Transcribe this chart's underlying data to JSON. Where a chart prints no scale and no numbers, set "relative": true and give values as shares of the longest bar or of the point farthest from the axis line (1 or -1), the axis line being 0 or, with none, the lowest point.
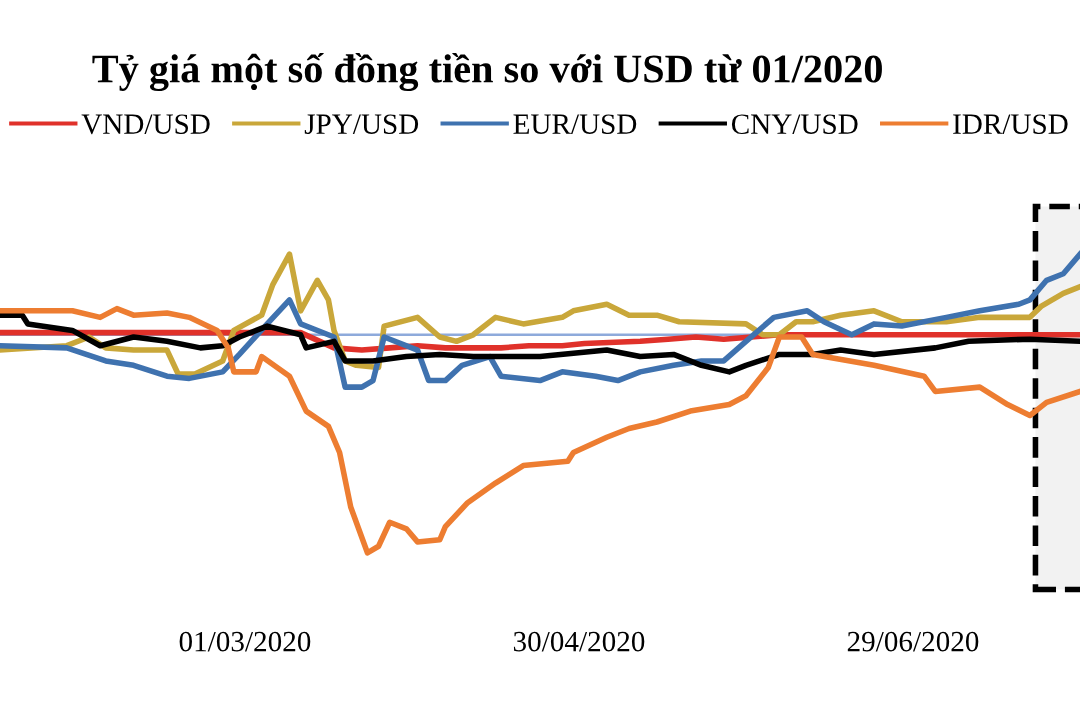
{
  "chart_data": {
    "type": "line",
    "title": "Tỷ giá một số đồng tiền so với USD từ 01/2020",
    "relative": true,
    "legend": "top",
    "grid": false,
    "marker": "none",
    "line_style": "solid",
    "xlim": [
      "2020-01-17",
      "2020-07-29"
    ],
    "xticks": [
      {
        "value": "2020-03-01",
        "label": "01/03/2020"
      },
      {
        "value": "2020-04-30",
        "label": "30/04/2020"
      },
      {
        "value": "2020-06-29",
        "label": "29/06/2020"
      }
    ],
    "ref_lines": [
      {
        "axis": "y",
        "value": 0,
        "color": "#8eaadb",
        "label": null
      }
    ],
    "bands": [
      {
        "axis": "x",
        "from": "2020-07-21",
        "to": "2020-07-29",
        "color": "#000000",
        "label": null
      }
    ],
    "series": [
      {
        "name": "VND/USD",
        "color": "#e0312a",
        "x": [
          "2020-01-17",
          "2020-03-11",
          "2020-03-17",
          "2020-03-22",
          "2020-03-27",
          "2020-04-01",
          "2020-04-06",
          "2020-04-16",
          "2020-04-21",
          "2020-04-27",
          "2020-05-01",
          "2020-05-11",
          "2020-05-16",
          "2020-05-21",
          "2020-05-26",
          "2020-05-31",
          "2020-06-05",
          "2020-07-29"
        ],
        "values": [
          0.01,
          0.01,
          -0.06,
          -0.07,
          -0.06,
          -0.05,
          -0.06,
          -0.06,
          -0.05,
          -0.05,
          -0.04,
          -0.03,
          -0.02,
          -0.01,
          -0.02,
          -0.01,
          0,
          0
        ]
      },
      {
        "name": "JPY/USD",
        "color": "#c9a73a",
        "x": [
          "2020-01-17",
          "2020-01-29",
          "2020-02-02",
          "2020-02-05",
          "2020-02-10",
          "2020-02-16",
          "2020-02-18",
          "2020-02-21",
          "2020-02-26",
          "2020-02-28",
          "2020-03-04",
          "2020-03-06",
          "2020-03-09",
          "2020-03-11",
          "2020-03-14",
          "2020-03-16",
          "2020-03-17",
          "2020-03-19",
          "2020-03-21",
          "2020-03-25",
          "2020-03-26",
          "2020-04-01",
          "2020-04-05",
          "2020-04-08",
          "2020-04-11",
          "2020-04-15",
          "2020-04-20",
          "2020-04-27",
          "2020-04-29",
          "2020-05-05",
          "2020-05-09",
          "2020-05-14",
          "2020-05-18",
          "2020-05-30",
          "2020-06-02",
          "2020-06-05",
          "2020-06-08",
          "2020-06-11",
          "2020-06-16",
          "2020-06-22",
          "2020-06-27",
          "2020-07-05",
          "2020-07-11",
          "2020-07-20",
          "2020-07-22",
          "2020-07-26",
          "2020-07-29"
        ],
        "values": [
          -0.07,
          -0.05,
          -0.01,
          -0.06,
          -0.07,
          -0.07,
          -0.18,
          -0.18,
          -0.12,
          0.02,
          0.09,
          0.23,
          0.37,
          0.11,
          0.25,
          0.16,
          0.02,
          -0.12,
          -0.14,
          -0.15,
          0.04,
          0.08,
          -0.01,
          -0.03,
          0,
          0.08,
          0.05,
          0.08,
          0.11,
          0.14,
          0.09,
          0.09,
          0.06,
          0.05,
          0,
          0,
          0.06,
          0.06,
          0.09,
          0.11,
          0.06,
          0.06,
          0.08,
          0.08,
          0.13,
          0.19,
          0.22
        ]
      },
      {
        "name": "EUR/USD",
        "color": "#3f72af",
        "x": [
          "2020-01-17",
          "2020-01-29",
          "2020-02-05",
          "2020-02-10",
          "2020-02-16",
          "2020-02-20",
          "2020-02-26",
          "2020-02-29",
          "2020-03-05",
          "2020-03-09",
          "2020-03-11",
          "2020-03-17",
          "2020-03-19",
          "2020-03-22",
          "2020-03-24",
          "2020-03-26",
          "2020-04-01",
          "2020-04-03",
          "2020-04-06",
          "2020-04-09",
          "2020-04-14",
          "2020-04-16",
          "2020-04-23",
          "2020-04-27",
          "2020-05-03",
          "2020-05-07",
          "2020-05-11",
          "2020-05-17",
          "2020-05-22",
          "2020-05-26",
          "2020-05-30",
          "2020-06-04",
          "2020-06-10",
          "2020-06-13",
          "2020-06-18",
          "2020-06-22",
          "2020-06-27",
          "2020-07-05",
          "2020-07-11",
          "2020-07-18",
          "2020-07-20",
          "2020-07-23",
          "2020-07-26",
          "2020-07-29"
        ],
        "values": [
          -0.05,
          -0.06,
          -0.12,
          -0.14,
          -0.19,
          -0.2,
          -0.17,
          -0.09,
          0.05,
          0.16,
          0.05,
          -0.01,
          -0.24,
          -0.24,
          -0.21,
          -0.01,
          -0.07,
          -0.21,
          -0.21,
          -0.14,
          -0.1,
          -0.19,
          -0.21,
          -0.17,
          -0.19,
          -0.21,
          -0.17,
          -0.14,
          -0.12,
          -0.12,
          -0.03,
          0.08,
          0.11,
          0.06,
          0,
          0.05,
          0.04,
          0.08,
          0.11,
          0.14,
          0.16,
          0.25,
          0.28,
          0.37
        ]
      },
      {
        "name": "CNY/USD",
        "color": "#000000",
        "x": [
          "2020-01-17",
          "2020-01-21",
          "2020-01-22",
          "2020-01-30",
          "2020-02-04",
          "2020-02-10",
          "2020-02-16",
          "2020-02-22",
          "2020-02-26",
          "2020-02-29",
          "2020-03-05",
          "2020-03-11",
          "2020-03-12",
          "2020-03-17",
          "2020-03-19",
          "2020-03-24",
          "2020-03-30",
          "2020-04-05",
          "2020-04-11",
          "2020-04-23",
          "2020-05-05",
          "2020-05-11",
          "2020-05-17",
          "2020-05-22",
          "2020-05-27",
          "2020-05-30",
          "2020-06-05",
          "2020-06-11",
          "2020-06-16",
          "2020-06-22",
          "2020-07-03",
          "2020-07-09",
          "2020-07-20",
          "2020-07-29"
        ],
        "values": [
          0.09,
          0.09,
          0.05,
          0.02,
          -0.05,
          -0.01,
          -0.03,
          -0.06,
          -0.05,
          -0.01,
          0.04,
          0,
          -0.06,
          -0.03,
          -0.12,
          -0.12,
          -0.1,
          -0.09,
          -0.1,
          -0.1,
          -0.07,
          -0.1,
          -0.09,
          -0.14,
          -0.17,
          -0.14,
          -0.09,
          -0.09,
          -0.07,
          -0.09,
          -0.06,
          -0.03,
          -0.02,
          -0.03
        ]
      },
      {
        "name": "IDR/USD",
        "color": "#ed7d31",
        "x": [
          "2020-01-17",
          "2020-01-30",
          "2020-02-04",
          "2020-02-07",
          "2020-02-10",
          "2020-02-16",
          "2020-02-20",
          "2020-02-25",
          "2020-02-27",
          "2020-02-28",
          "2020-03-03",
          "2020-03-04",
          "2020-03-09",
          "2020-03-12",
          "2020-03-16",
          "2020-03-18",
          "2020-03-20",
          "2020-03-23",
          "2020-03-25",
          "2020-03-27",
          "2020-03-30",
          "2020-04-01",
          "2020-04-05",
          "2020-04-06",
          "2020-04-10",
          "2020-04-15",
          "2020-04-20",
          "2020-04-28",
          "2020-04-29",
          "2020-05-05",
          "2020-05-09",
          "2020-05-14",
          "2020-05-20",
          "2020-05-27",
          "2020-05-30",
          "2020-06-03",
          "2020-06-05",
          "2020-06-09",
          "2020-06-11",
          "2020-06-22",
          "2020-07-01",
          "2020-07-03",
          "2020-07-11",
          "2020-07-16",
          "2020-07-20",
          "2020-07-23",
          "2020-07-29"
        ],
        "values": [
          0.11,
          0.11,
          0.08,
          0.12,
          0.09,
          0.1,
          0.08,
          0.02,
          -0.06,
          -0.17,
          -0.17,
          -0.1,
          -0.19,
          -0.35,
          -0.42,
          -0.54,
          -0.79,
          -1,
          -0.97,
          -0.86,
          -0.89,
          -0.95,
          -0.94,
          -0.88,
          -0.77,
          -0.68,
          -0.6,
          -0.58,
          -0.54,
          -0.47,
          -0.43,
          -0.4,
          -0.35,
          -0.32,
          -0.28,
          -0.15,
          -0.01,
          -0.01,
          -0.09,
          -0.14,
          -0.19,
          -0.26,
          -0.24,
          -0.32,
          -0.37,
          -0.31,
          -0.26
        ]
      }
    ]
  }
}
